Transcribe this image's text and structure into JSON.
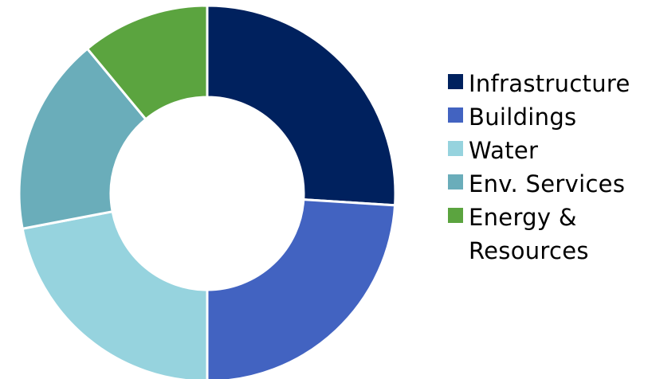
{
  "chart_data": {
    "type": "pie",
    "variant": "donut",
    "title": "",
    "categories": [
      "Infrastructure",
      "Buildings",
      "Water",
      "Env. Services",
      "Energy & Resources"
    ],
    "series": [
      {
        "values": [
          26,
          24,
          22,
          17,
          11
        ]
      }
    ],
    "value_unit": "percent",
    "start_angle": "12 o'clock",
    "direction": "clockwise",
    "legend": {
      "position": "right",
      "entries": [
        {
          "label": "Infrastructure",
          "color": "#00215e"
        },
        {
          "label": "Buildings",
          "color": "#4263c1"
        },
        {
          "label": "Water",
          "color": "#96d3de"
        },
        {
          "label": "Env. Services",
          "color": "#6aadba"
        },
        {
          "label": "Energy &\nResources",
          "color": "#5ba43f"
        }
      ]
    },
    "colors": [
      "#00215e",
      "#4263c1",
      "#96d3de",
      "#6aadba",
      "#5ba43f"
    ],
    "separator_color": "#ffffff"
  }
}
